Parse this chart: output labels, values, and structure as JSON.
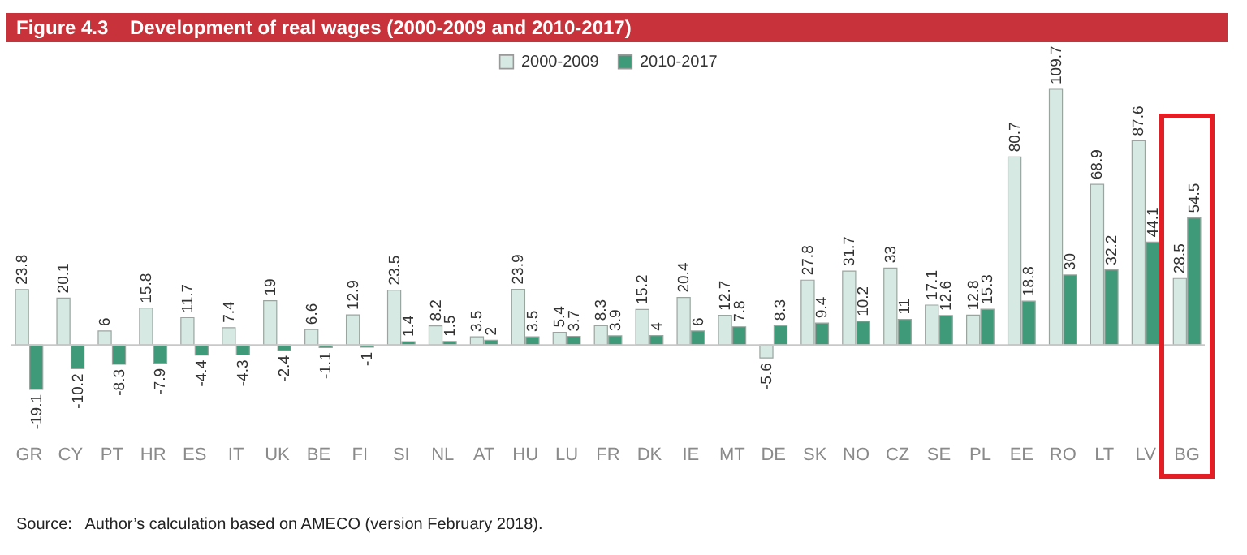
{
  "chart_data": {
    "type": "bar",
    "title": "Figure 4.3    Development of real wages (2000-2009 and 2010-2017)",
    "categories": [
      "GR",
      "CY",
      "PT",
      "HR",
      "ES",
      "IT",
      "UK",
      "BE",
      "FI",
      "SI",
      "NL",
      "AT",
      "HU",
      "LU",
      "FR",
      "DK",
      "IE",
      "MT",
      "DE",
      "SK",
      "NO",
      "CZ",
      "SE",
      "PL",
      "EE",
      "RO",
      "LT",
      "LV",
      "BG"
    ],
    "series": [
      {
        "name": "2000-2009",
        "color": "#d6e9e2",
        "values": [
          23.8,
          20.1,
          6,
          15.8,
          11.7,
          7.4,
          19,
          6.6,
          12.9,
          23.5,
          8.2,
          3.5,
          23.9,
          5.4,
          8.3,
          15.2,
          20.4,
          12.7,
          -5.6,
          27.8,
          31.7,
          33,
          17.1,
          12.8,
          80.7,
          109.7,
          68.9,
          87.6,
          28.5
        ]
      },
      {
        "name": "2010-2017",
        "color": "#3f9a7a",
        "values": [
          -19.1,
          -10.2,
          -8.3,
          -7.9,
          -4.4,
          -4.3,
          -2.4,
          -1.1,
          -1,
          1.4,
          1.5,
          2,
          3.5,
          3.7,
          3.9,
          4,
          6,
          7.8,
          8.3,
          9.4,
          10.2,
          11,
          12.6,
          15.3,
          18.8,
          30,
          32.2,
          44.1,
          54.5
        ]
      }
    ],
    "data_labels": true,
    "legend": "top",
    "grid": false,
    "annotations": [
      "Source:   Author’s calculation based on AMECO (version February 2018)."
    ]
  }
}
